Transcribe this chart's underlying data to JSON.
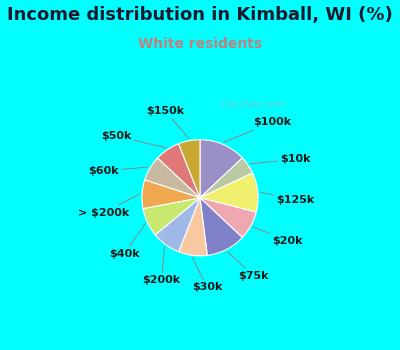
{
  "title": "Income distribution in Kimball, WI (%)",
  "subtitle": "White residents",
  "title_color": "#1a1a2e",
  "subtitle_color": "#c08080",
  "bg_color": "#00ffff",
  "chart_bg": "#d8efe0",
  "labels": [
    "$100k",
    "$10k",
    "$125k",
    "$20k",
    "$75k",
    "$30k",
    "$200k",
    "$40k",
    "> $200k",
    "$60k",
    "$50k",
    "$150k"
  ],
  "values": [
    13,
    5,
    11,
    8,
    11,
    8,
    8,
    8,
    8,
    7,
    7,
    6
  ],
  "colors": [
    "#9b8fc7",
    "#b8c9a3",
    "#f0f06e",
    "#f0a8b0",
    "#8080c8",
    "#f8c8a0",
    "#a0b8e8",
    "#c8e870",
    "#f0a850",
    "#c8baa0",
    "#e07878",
    "#c8a830"
  ],
  "label_fontsize": 8,
  "title_fontsize": 13,
  "subtitle_fontsize": 10,
  "watermark": "City-Data.com",
  "label_color": "#1a1a1a"
}
